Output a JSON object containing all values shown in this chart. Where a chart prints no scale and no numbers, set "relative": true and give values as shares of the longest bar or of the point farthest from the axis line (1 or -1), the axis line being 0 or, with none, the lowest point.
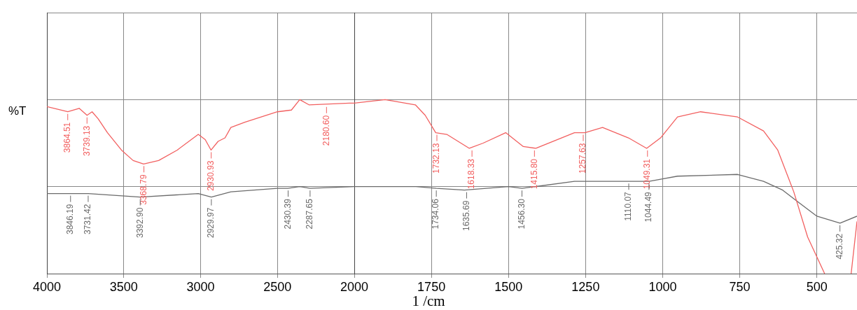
{
  "chart_data": [
    {
      "type": "line",
      "relative": true,
      "xlabel": "1 /cm",
      "ylabel": "%T",
      "xlim": [
        4000,
        2000
      ],
      "xticks": [
        4000,
        3500,
        3000,
        2500,
        2000
      ],
      "grid": true,
      "legend": false,
      "marker": "none",
      "line_style": "solid",
      "series": [
        {
          "color": "#f26060",
          "x": [
            4000,
            3864,
            3790,
            3739,
            3706,
            3667,
            3606,
            3515,
            3439,
            3371,
            3273,
            3152,
            3015,
            2970,
            2932,
            2886,
            2841,
            2803,
            2712,
            2500,
            2409,
            2355,
            2295,
            2032,
            2000
          ],
          "values": [
            0.96,
            0.93,
            0.95,
            0.91,
            0.93,
            0.89,
            0.81,
            0.71,
            0.65,
            0.63,
            0.65,
            0.71,
            0.8,
            0.77,
            0.71,
            0.76,
            0.78,
            0.84,
            0.87,
            0.93,
            0.94,
            1.0,
            0.97,
            0.98,
            0.98
          ]
        },
        {
          "color": "#6b6b6b",
          "x": [
            4000,
            3846,
            3790,
            3731,
            3393,
            3015,
            2930,
            2803,
            2500,
            2432,
            2355,
            2288,
            2000
          ],
          "values": [
            0.46,
            0.46,
            0.46,
            0.46,
            0.44,
            0.46,
            0.44,
            0.47,
            0.49,
            0.49,
            0.5,
            0.49,
            0.5
          ]
        }
      ],
      "annotations": [
        {
          "text": "3864.51",
          "x": 3864.51,
          "y": 0.93
        },
        {
          "text": "3739.13",
          "x": 3739.13,
          "y": 0.91
        },
        {
          "text": "3368.79",
          "x": 3368.79,
          "y": 0.63
        },
        {
          "text": "2930.93",
          "x": 2930.93,
          "y": 0.71
        },
        {
          "text": "2180.60",
          "x": 2180.6,
          "y": 0.97
        },
        {
          "text": "3846.19",
          "x": 3846.19,
          "y": 0.46
        },
        {
          "text": "3731.42",
          "x": 3731.42,
          "y": 0.46
        },
        {
          "text": "3392.90",
          "x": 3392.9,
          "y": 0.44
        },
        {
          "text": "2929.97",
          "x": 2929.97,
          "y": 0.44
        },
        {
          "text": "2430.39",
          "x": 2430.39,
          "y": 0.49
        },
        {
          "text": "2287.65",
          "x": 2287.65,
          "y": 0.49
        }
      ]
    },
    {
      "type": "line",
      "relative": true,
      "xlim": [
        2000,
        370
      ],
      "xticks": [
        1750,
        1500,
        1250,
        1000,
        750,
        500
      ],
      "grid": true,
      "legend": false,
      "marker": "none",
      "line_style": "solid",
      "series": [
        {
          "color": "#f26060",
          "x": [
            2000,
            1900,
            1802,
            1770,
            1736,
            1700,
            1627,
            1582,
            1509,
            1452,
            1411,
            1286,
            1252,
            1195,
            1111,
            1052,
            1007,
            952,
            877,
            757,
            673,
            627,
            575,
            530,
            475,
            430,
            389,
            370
          ],
          "values": [
            0.98,
            1.0,
            0.97,
            0.91,
            0.81,
            0.8,
            0.72,
            0.75,
            0.81,
            0.73,
            0.72,
            0.81,
            0.81,
            0.84,
            0.78,
            0.72,
            0.78,
            0.9,
            0.93,
            0.9,
            0.82,
            0.71,
            0.47,
            0.21,
            0,
            null,
            0,
            0.3
          ]
        },
        {
          "color": "#6b6b6b",
          "x": [
            2000,
            1800,
            1734,
            1643,
            1500,
            1456,
            1286,
            1195,
            1110,
            1044,
            952,
            757,
            673,
            611,
            560,
            500,
            425,
            370
          ],
          "values": [
            0.5,
            0.5,
            0.49,
            0.48,
            0.5,
            0.49,
            0.53,
            0.53,
            0.53,
            0.53,
            0.56,
            0.57,
            0.53,
            0.48,
            0.41,
            0.33,
            0.29,
            0.33
          ]
        }
      ],
      "annotations": [
        {
          "text": "1732.13",
          "x": 1732.13,
          "y": 0.81
        },
        {
          "text": "1618.33",
          "x": 1618.33,
          "y": 0.72
        },
        {
          "text": "1415.80",
          "x": 1415.8,
          "y": 0.72
        },
        {
          "text": "1257.63",
          "x": 1257.63,
          "y": 0.81
        },
        {
          "text": "1049.31",
          "x": 1049.31,
          "y": 0.72
        },
        {
          "text": "1734.06",
          "x": 1734.06,
          "y": 0.49
        },
        {
          "text": "1635.69",
          "x": 1635.69,
          "y": 0.48
        },
        {
          "text": "1456.30",
          "x": 1456.3,
          "y": 0.49
        },
        {
          "text": "1110.07",
          "x": 1110.07,
          "y": 0.53
        },
        {
          "text": "1044.49",
          "x": 1044.49,
          "y": 0.53
        },
        {
          "text": "425.32",
          "x": 425.32,
          "y": 0.29
        }
      ]
    }
  ]
}
